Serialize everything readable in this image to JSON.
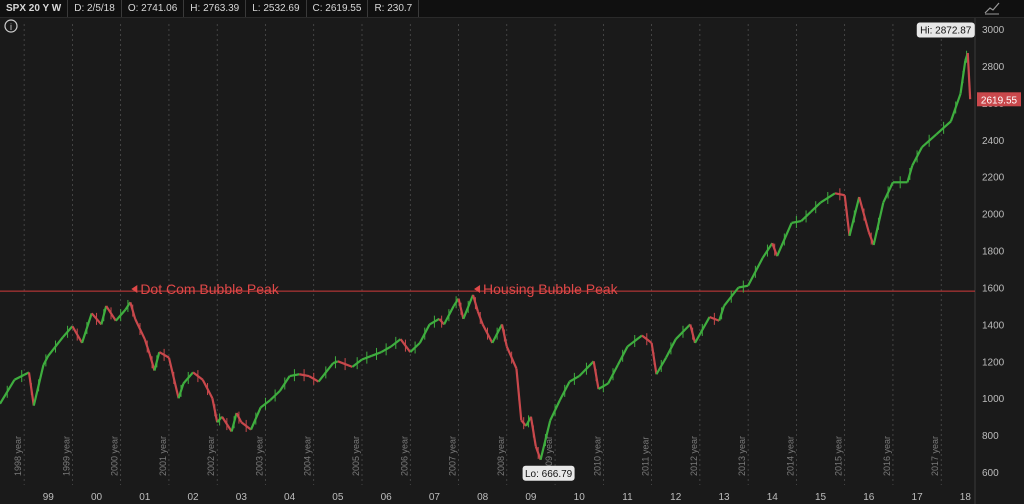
{
  "header": {
    "symbol": "SPX 20 Y W",
    "date": "D: 2/5/18",
    "open": "O: 2741.06",
    "high": "H: 2763.39",
    "low": "L: 2532.69",
    "close": "C: 2619.55",
    "range": "R: 230.7"
  },
  "colors": {
    "background": "#1a1a1a",
    "up": "#3fae3f",
    "down": "#c9484c",
    "reference_line": "#d03a3a",
    "annotation_text": "#e04848"
  },
  "chart_data": {
    "type": "line",
    "title": "",
    "x": [
      "1998",
      "1999",
      "2000",
      "2001",
      "2002",
      "2003",
      "2004",
      "2005",
      "2006",
      "2007",
      "2008",
      "2009",
      "2010",
      "2011",
      "2012",
      "2013",
      "2014",
      "2015",
      "2016",
      "2017",
      "2018"
    ],
    "x_tick_labels": [
      "99",
      "00",
      "01",
      "02",
      "03",
      "04",
      "05",
      "06",
      "07",
      "08",
      "09",
      "10",
      "11",
      "12",
      "13",
      "14",
      "15",
      "16",
      "17",
      "18"
    ],
    "x_year_labels": [
      "1998 year",
      "1999 year",
      "2000 year",
      "2001 year",
      "2002 year",
      "2003 year",
      "2004 year",
      "2005 year",
      "2006 year",
      "2007 year",
      "2008 year",
      "2009 year",
      "2010 year",
      "2011 year",
      "2012 year",
      "2013 year",
      "2014 year",
      "2015 year",
      "2016 year",
      "2017 year"
    ],
    "y_ticks": [
      600,
      800,
      1000,
      1200,
      1400,
      1600,
      1800,
      2000,
      2200,
      2400,
      2600,
      2800,
      3000
    ],
    "ylim": [
      530,
      3060
    ],
    "xlim": [
      1998.0,
      2018.2
    ],
    "series": [
      {
        "points": [
          [
            1998.0,
            970
          ],
          [
            1998.3,
            1100
          ],
          [
            1998.6,
            1140
          ],
          [
            1998.7,
            960
          ],
          [
            1998.9,
            1180
          ],
          [
            1999.0,
            1230
          ],
          [
            1999.3,
            1330
          ],
          [
            1999.5,
            1390
          ],
          [
            1999.7,
            1300
          ],
          [
            1999.9,
            1460
          ],
          [
            2000.1,
            1400
          ],
          [
            2000.2,
            1500
          ],
          [
            2000.4,
            1420
          ],
          [
            2000.6,
            1480
          ],
          [
            2000.7,
            1520
          ],
          [
            2000.8,
            1430
          ],
          [
            2001.0,
            1320
          ],
          [
            2001.1,
            1240
          ],
          [
            2001.2,
            1150
          ],
          [
            2001.3,
            1250
          ],
          [
            2001.5,
            1220
          ],
          [
            2001.7,
            1000
          ],
          [
            2001.8,
            1080
          ],
          [
            2002.0,
            1140
          ],
          [
            2002.2,
            1100
          ],
          [
            2002.4,
            1000
          ],
          [
            2002.5,
            870
          ],
          [
            2002.6,
            900
          ],
          [
            2002.8,
            820
          ],
          [
            2002.9,
            920
          ],
          [
            2003.0,
            870
          ],
          [
            2003.2,
            830
          ],
          [
            2003.4,
            950
          ],
          [
            2003.6,
            990
          ],
          [
            2003.8,
            1040
          ],
          [
            2004.0,
            1120
          ],
          [
            2004.2,
            1130
          ],
          [
            2004.4,
            1120
          ],
          [
            2004.6,
            1090
          ],
          [
            2004.9,
            1190
          ],
          [
            2005.0,
            1200
          ],
          [
            2005.3,
            1170
          ],
          [
            2005.5,
            1210
          ],
          [
            2005.7,
            1230
          ],
          [
            2005.9,
            1250
          ],
          [
            2006.1,
            1280
          ],
          [
            2006.3,
            1320
          ],
          [
            2006.5,
            1250
          ],
          [
            2006.7,
            1300
          ],
          [
            2006.9,
            1400
          ],
          [
            2007.1,
            1430
          ],
          [
            2007.2,
            1400
          ],
          [
            2007.4,
            1500
          ],
          [
            2007.5,
            1540
          ],
          [
            2007.6,
            1430
          ],
          [
            2007.8,
            1560
          ],
          [
            2007.9,
            1470
          ],
          [
            2008.0,
            1400
          ],
          [
            2008.2,
            1300
          ],
          [
            2008.4,
            1400
          ],
          [
            2008.5,
            1280
          ],
          [
            2008.7,
            1160
          ],
          [
            2008.8,
            880
          ],
          [
            2008.9,
            850
          ],
          [
            2009.0,
            900
          ],
          [
            2009.1,
            740
          ],
          [
            2009.2,
            667
          ],
          [
            2009.4,
            880
          ],
          [
            2009.6,
            990
          ],
          [
            2009.8,
            1090
          ],
          [
            2010.0,
            1120
          ],
          [
            2010.3,
            1200
          ],
          [
            2010.4,
            1050
          ],
          [
            2010.6,
            1080
          ],
          [
            2010.8,
            1180
          ],
          [
            2011.0,
            1280
          ],
          [
            2011.3,
            1340
          ],
          [
            2011.5,
            1300
          ],
          [
            2011.6,
            1130
          ],
          [
            2011.8,
            1220
          ],
          [
            2012.0,
            1320
          ],
          [
            2012.3,
            1400
          ],
          [
            2012.4,
            1300
          ],
          [
            2012.7,
            1440
          ],
          [
            2012.9,
            1420
          ],
          [
            2013.0,
            1500
          ],
          [
            2013.3,
            1600
          ],
          [
            2013.5,
            1610
          ],
          [
            2013.8,
            1760
          ],
          [
            2014.0,
            1840
          ],
          [
            2014.1,
            1770
          ],
          [
            2014.4,
            1950
          ],
          [
            2014.6,
            1960
          ],
          [
            2014.8,
            2010
          ],
          [
            2015.0,
            2060
          ],
          [
            2015.3,
            2110
          ],
          [
            2015.5,
            2100
          ],
          [
            2015.6,
            1880
          ],
          [
            2015.8,
            2090
          ],
          [
            2016.0,
            1900
          ],
          [
            2016.1,
            1830
          ],
          [
            2016.3,
            2060
          ],
          [
            2016.5,
            2170
          ],
          [
            2016.8,
            2170
          ],
          [
            2016.9,
            2260
          ],
          [
            2017.1,
            2360
          ],
          [
            2017.4,
            2430
          ],
          [
            2017.7,
            2500
          ],
          [
            2017.9,
            2650
          ],
          [
            2018.0,
            2830
          ],
          [
            2018.05,
            2870
          ],
          [
            2018.1,
            2620
          ]
        ]
      }
    ],
    "reference_line_value": 1580,
    "annotations": [
      {
        "text": "Dot Com Bubble Peak",
        "x": 2000.7,
        "y": 1565
      },
      {
        "text": "Housing Bubble Peak",
        "x": 2007.8,
        "y": 1565
      }
    ],
    "hi_label": "Hi: 2872.87",
    "lo_label": "Lo: 666.79",
    "last_price_label": "2619.55",
    "hi_value": 2872.87,
    "lo_value": 666.79,
    "last_value": 2619.55,
    "hi_x": 2018.05,
    "lo_x": 2009.2
  }
}
